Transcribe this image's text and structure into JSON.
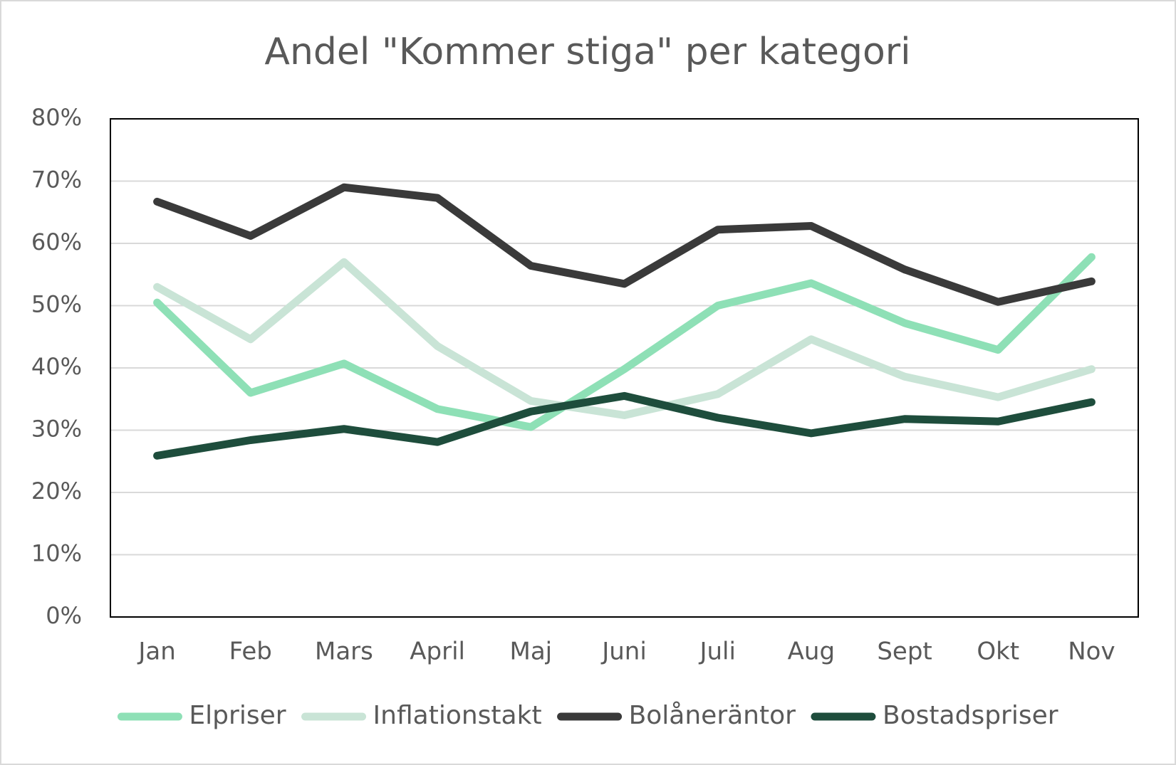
{
  "chart_data": {
    "type": "line",
    "title": "Andel \"Kommer stiga\" per kategori",
    "categories": [
      "Jan",
      "Feb",
      "Mars",
      "April",
      "Maj",
      "Juni",
      "Juli",
      "Aug",
      "Sept",
      "Okt",
      "Nov"
    ],
    "series": [
      {
        "name": "Elpriser",
        "color": "#8ee0b6",
        "values": [
          50.5,
          36.0,
          40.7,
          33.4,
          30.5,
          39.8,
          50.0,
          53.6,
          47.2,
          42.9,
          57.8
        ]
      },
      {
        "name": "Inflationstakt",
        "color": "#c9e4d6",
        "values": [
          53.0,
          44.6,
          57.0,
          43.5,
          34.7,
          32.4,
          35.8,
          44.6,
          38.6,
          35.3,
          39.8
        ]
      },
      {
        "name": "Bolåneräntor",
        "color": "#3a3a3a",
        "values": [
          66.7,
          61.2,
          69.0,
          67.3,
          56.4,
          53.5,
          62.2,
          62.8,
          55.8,
          50.6,
          53.9
        ]
      },
      {
        "name": "Bostadspriser",
        "color": "#1e4d3c",
        "values": [
          25.9,
          28.4,
          30.2,
          28.1,
          33.0,
          35.5,
          32.0,
          29.5,
          31.8,
          31.4,
          34.5
        ]
      }
    ],
    "ylim": [
      0,
      80
    ],
    "yticks": [
      {
        "value": 0,
        "label": "0%"
      },
      {
        "value": 10,
        "label": "10%"
      },
      {
        "value": 20,
        "label": "20%"
      },
      {
        "value": 30,
        "label": "30%"
      },
      {
        "value": 40,
        "label": "40%"
      },
      {
        "value": 50,
        "label": "50%"
      },
      {
        "value": 60,
        "label": "60%"
      },
      {
        "value": 70,
        "label": "70%"
      },
      {
        "value": 80,
        "label": "80%"
      }
    ],
    "grid": true,
    "legend": "bottom"
  }
}
